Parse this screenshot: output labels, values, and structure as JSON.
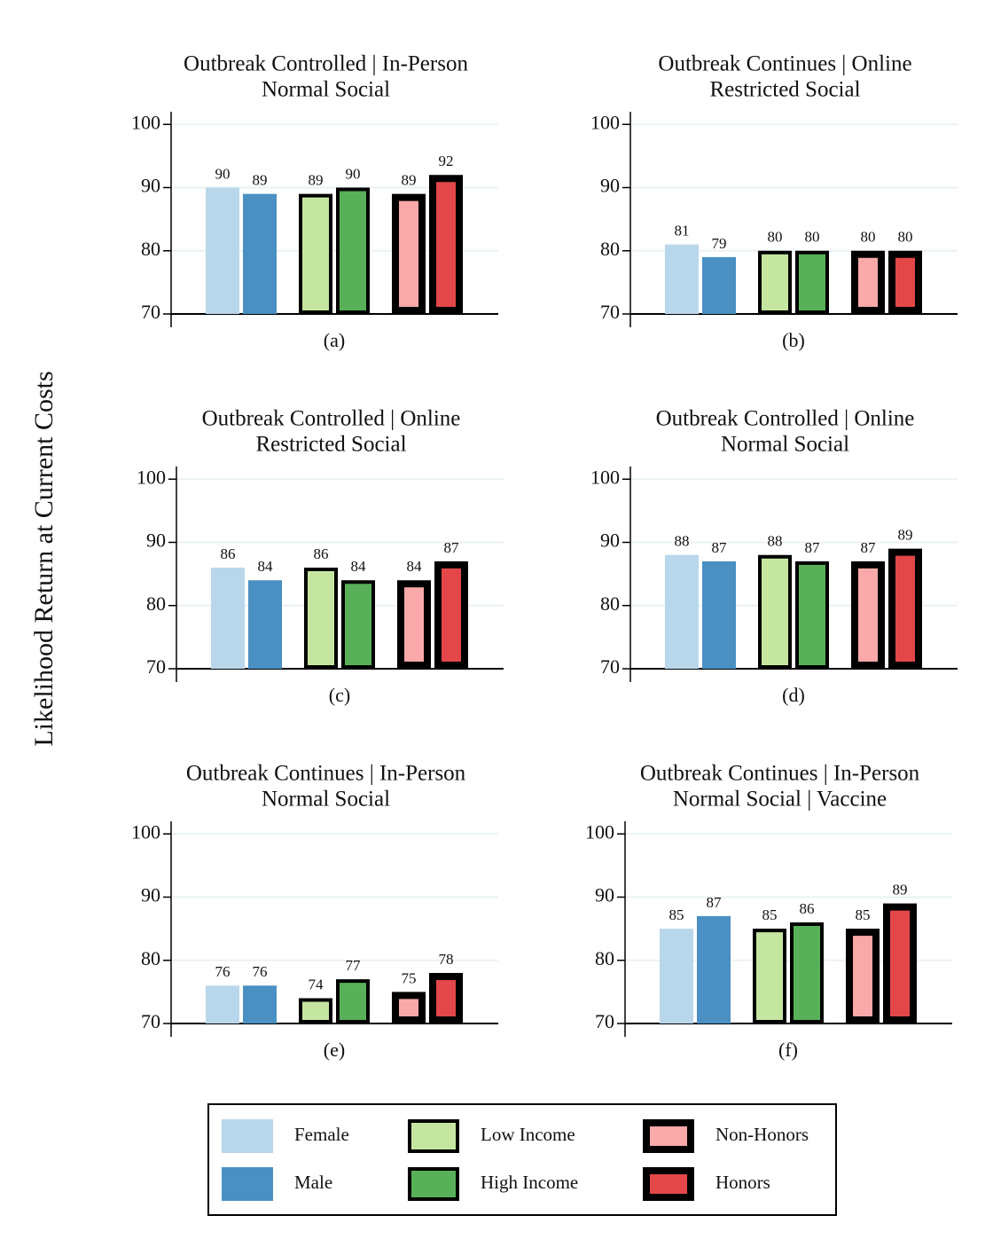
{
  "ylabel": "Likelihood Return at Current Costs",
  "chart_data": [
    {
      "type": "bar",
      "title": [
        "Outbreak Controlled | In-Person",
        "Normal Social"
      ],
      "caption": "(a)",
      "ylim": [
        70,
        102
      ],
      "yticks": [
        70,
        80,
        90,
        100
      ],
      "grid": true,
      "series": [
        {
          "name": "Female",
          "color": "#b9d7ea",
          "values": [
            90
          ]
        },
        {
          "name": "Male",
          "color": "#4a90c2",
          "values": [
            89
          ]
        },
        {
          "name": "Low Income",
          "color": "#c5e6a1",
          "edgecolor": "#000000",
          "edgewidth": 4,
          "values": [
            89
          ]
        },
        {
          "name": "High Income",
          "color": "#58b158",
          "edgecolor": "#000000",
          "edgewidth": 4,
          "values": [
            90
          ]
        },
        {
          "name": "Non-Honors",
          "color": "#f9a9a9",
          "edgecolor": "#000000",
          "edgewidth": 8,
          "values": [
            89
          ]
        },
        {
          "name": "Honors",
          "color": "#e3474a",
          "edgecolor": "#000000",
          "edgewidth": 8,
          "values": [
            92
          ]
        }
      ]
    },
    {
      "type": "bar",
      "title": [
        "Outbreak Continues | Online",
        "Restricted Social"
      ],
      "caption": "(b)",
      "ylim": [
        70,
        102
      ],
      "yticks": [
        70,
        80,
        90,
        100
      ],
      "grid": true,
      "series": [
        {
          "name": "Female",
          "color": "#b9d7ea",
          "values": [
            81
          ]
        },
        {
          "name": "Male",
          "color": "#4a90c2",
          "values": [
            79
          ]
        },
        {
          "name": "Low Income",
          "color": "#c5e6a1",
          "edgecolor": "#000000",
          "edgewidth": 4,
          "values": [
            80
          ]
        },
        {
          "name": "High Income",
          "color": "#58b158",
          "edgecolor": "#000000",
          "edgewidth": 4,
          "values": [
            80
          ]
        },
        {
          "name": "Non-Honors",
          "color": "#f9a9a9",
          "edgecolor": "#000000",
          "edgewidth": 8,
          "values": [
            80
          ]
        },
        {
          "name": "Honors",
          "color": "#e3474a",
          "edgecolor": "#000000",
          "edgewidth": 8,
          "values": [
            80
          ]
        }
      ]
    },
    {
      "type": "bar",
      "title": [
        "Outbreak Controlled | Online",
        "Restricted Social"
      ],
      "caption": "(c)",
      "ylim": [
        70,
        102
      ],
      "yticks": [
        70,
        80,
        90,
        100
      ],
      "grid": true,
      "series": [
        {
          "name": "Female",
          "color": "#b9d7ea",
          "values": [
            86
          ]
        },
        {
          "name": "Male",
          "color": "#4a90c2",
          "values": [
            84
          ]
        },
        {
          "name": "Low Income",
          "color": "#c5e6a1",
          "edgecolor": "#000000",
          "edgewidth": 4,
          "values": [
            86
          ]
        },
        {
          "name": "High Income",
          "color": "#58b158",
          "edgecolor": "#000000",
          "edgewidth": 4,
          "values": [
            84
          ]
        },
        {
          "name": "Non-Honors",
          "color": "#f9a9a9",
          "edgecolor": "#000000",
          "edgewidth": 8,
          "values": [
            84
          ]
        },
        {
          "name": "Honors",
          "color": "#e3474a",
          "edgecolor": "#000000",
          "edgewidth": 8,
          "values": [
            87
          ]
        }
      ]
    },
    {
      "type": "bar",
      "title": [
        "Outbreak Controlled | Online",
        "Normal Social"
      ],
      "caption": "(d)",
      "ylim": [
        70,
        102
      ],
      "yticks": [
        70,
        80,
        90,
        100
      ],
      "grid": true,
      "series": [
        {
          "name": "Female",
          "color": "#b9d7ea",
          "values": [
            88
          ]
        },
        {
          "name": "Male",
          "color": "#4a90c2",
          "values": [
            87
          ]
        },
        {
          "name": "Low Income",
          "color": "#c5e6a1",
          "edgecolor": "#000000",
          "edgewidth": 4,
          "values": [
            88
          ]
        },
        {
          "name": "High Income",
          "color": "#58b158",
          "edgecolor": "#000000",
          "edgewidth": 4,
          "values": [
            87
          ]
        },
        {
          "name": "Non-Honors",
          "color": "#f9a9a9",
          "edgecolor": "#000000",
          "edgewidth": 8,
          "values": [
            87
          ]
        },
        {
          "name": "Honors",
          "color": "#e3474a",
          "edgecolor": "#000000",
          "edgewidth": 8,
          "values": [
            89
          ]
        }
      ]
    },
    {
      "type": "bar",
      "title": [
        "Outbreak Continues | In-Person",
        "Normal Social"
      ],
      "caption": "(e)",
      "ylim": [
        70,
        102
      ],
      "yticks": [
        70,
        80,
        90,
        100
      ],
      "grid": true,
      "series": [
        {
          "name": "Female",
          "color": "#b9d7ea",
          "values": [
            76
          ]
        },
        {
          "name": "Male",
          "color": "#4a90c2",
          "values": [
            76
          ]
        },
        {
          "name": "Low Income",
          "color": "#c5e6a1",
          "edgecolor": "#000000",
          "edgewidth": 4,
          "values": [
            74
          ]
        },
        {
          "name": "High Income",
          "color": "#58b158",
          "edgecolor": "#000000",
          "edgewidth": 4,
          "values": [
            77
          ]
        },
        {
          "name": "Non-Honors",
          "color": "#f9a9a9",
          "edgecolor": "#000000",
          "edgewidth": 8,
          "values": [
            75
          ]
        },
        {
          "name": "Honors",
          "color": "#e3474a",
          "edgecolor": "#000000",
          "edgewidth": 8,
          "values": [
            78
          ]
        }
      ]
    },
    {
      "type": "bar",
      "title": [
        "Outbreak Continues | In-Person",
        "Normal Social | Vaccine"
      ],
      "caption": "(f)",
      "ylim": [
        70,
        102
      ],
      "yticks": [
        70,
        80,
        90,
        100
      ],
      "grid": true,
      "series": [
        {
          "name": "Female",
          "color": "#b9d7ea",
          "values": [
            85
          ]
        },
        {
          "name": "Male",
          "color": "#4a90c2",
          "values": [
            87
          ]
        },
        {
          "name": "Low Income",
          "color": "#c5e6a1",
          "edgecolor": "#000000",
          "edgewidth": 4,
          "values": [
            85
          ]
        },
        {
          "name": "High Income",
          "color": "#58b158",
          "edgecolor": "#000000",
          "edgewidth": 4,
          "values": [
            86
          ]
        },
        {
          "name": "Non-Honors",
          "color": "#f9a9a9",
          "edgecolor": "#000000",
          "edgewidth": 8,
          "values": [
            85
          ]
        },
        {
          "name": "Honors",
          "color": "#e3474a",
          "edgecolor": "#000000",
          "edgewidth": 8,
          "values": [
            89
          ]
        }
      ]
    }
  ]
}
